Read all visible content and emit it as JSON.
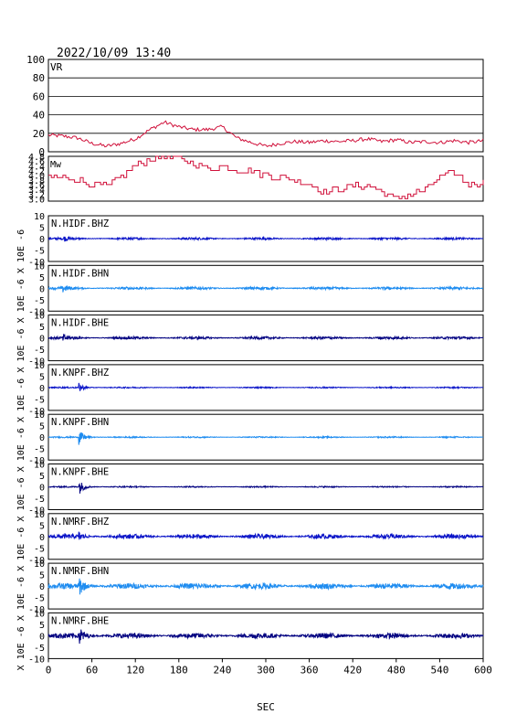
{
  "header": {
    "datetime": "2022/10/09  13:40"
  },
  "x_axis": {
    "label": "SEC",
    "ticks": [
      0,
      60,
      120,
      180,
      240,
      300,
      360,
      420,
      480,
      540,
      600
    ],
    "range": [
      0,
      600
    ]
  },
  "colors": {
    "frame": "#000000",
    "vr": "#d0103a",
    "mw": "#d0103a",
    "bhz": "#0a14c8",
    "bhn": "#1e8cf0",
    "bhe": "#000080"
  },
  "chart_data": [
    {
      "type": "line",
      "panel": "vr",
      "title": "VR",
      "ylim": [
        0,
        100
      ],
      "yticks": [
        0,
        20,
        40,
        60,
        80,
        100
      ],
      "grid": true,
      "x": [
        0,
        20,
        40,
        60,
        80,
        100,
        120,
        140,
        160,
        180,
        200,
        220,
        240,
        260,
        280,
        300,
        320,
        340,
        360,
        380,
        400,
        420,
        440,
        460,
        480,
        500,
        520,
        540,
        560,
        580,
        600
      ],
      "values": [
        18,
        17,
        15,
        9,
        6,
        9,
        14,
        24,
        32,
        27,
        24,
        24,
        27,
        15,
        10,
        6,
        9,
        11,
        10,
        12,
        11,
        12,
        14,
        11,
        13,
        10,
        11,
        10,
        12,
        10,
        12
      ]
    },
    {
      "type": "line",
      "panel": "mw",
      "title": "Mw",
      "ylim": [
        2.9,
        4.8
      ],
      "yticks": [
        "3.0",
        "3.2",
        "3.4",
        "3.6",
        "3.8",
        "4.0",
        "4.2",
        "4.4",
        "4.6",
        "4.8"
      ],
      "grid": false,
      "x": [
        0,
        20,
        40,
        60,
        80,
        100,
        120,
        140,
        160,
        180,
        200,
        220,
        240,
        260,
        280,
        300,
        320,
        340,
        360,
        380,
        400,
        420,
        440,
        460,
        480,
        500,
        520,
        540,
        560,
        580,
        600
      ],
      "values": [
        3.9,
        3.9,
        3.8,
        3.6,
        3.5,
        3.9,
        4.4,
        4.7,
        4.8,
        4.7,
        4.5,
        4.3,
        4.4,
        4.2,
        4.2,
        4.0,
        3.9,
        3.8,
        3.6,
        3.3,
        3.4,
        3.5,
        3.6,
        3.3,
        3.0,
        3.2,
        3.4,
        3.9,
        4.1,
        3.6,
        3.7
      ]
    },
    {
      "type": "line",
      "panel": "wave",
      "title": "N.HIDF.BHZ",
      "component": "bhz",
      "ylim": [
        -10,
        10
      ],
      "onset_s": 20,
      "peak": 1.2,
      "noise": 0.5
    },
    {
      "type": "line",
      "panel": "wave",
      "title": "N.HIDF.BHN",
      "component": "bhn",
      "ylim": [
        -10,
        10
      ],
      "onset_s": 20,
      "peak": 1.6,
      "noise": 0.6
    },
    {
      "type": "line",
      "panel": "wave",
      "title": "N.HIDF.BHE",
      "component": "bhe",
      "ylim": [
        -10,
        10
      ],
      "onset_s": 20,
      "peak": 1.6,
      "noise": 0.6
    },
    {
      "type": "line",
      "panel": "wave",
      "title": "N.KNPF.BHZ",
      "component": "bhz",
      "ylim": [
        -10,
        10
      ],
      "onset_s": 42,
      "peak": 2.0,
      "noise": 0.3
    },
    {
      "type": "line",
      "panel": "wave",
      "title": "N.KNPF.BHN",
      "component": "bhn",
      "ylim": [
        -10,
        10
      ],
      "onset_s": 42,
      "peak": 3.5,
      "noise": 0.3
    },
    {
      "type": "line",
      "panel": "wave",
      "title": "N.KNPF.BHE",
      "component": "bhe",
      "ylim": [
        -10,
        10
      ],
      "onset_s": 42,
      "peak": 3.5,
      "noise": 0.3
    },
    {
      "type": "line",
      "panel": "wave",
      "title": "N.NMRF.BHZ",
      "component": "bhz",
      "ylim": [
        -10,
        10
      ],
      "onset_s": 42,
      "peak": 1.8,
      "noise": 1.0
    },
    {
      "type": "line",
      "panel": "wave",
      "title": "N.NMRF.BHN",
      "component": "bhn",
      "ylim": [
        -10,
        10
      ],
      "onset_s": 42,
      "peak": 4.5,
      "noise": 1.3
    },
    {
      "type": "line",
      "panel": "wave",
      "title": "N.NMRF.BHE",
      "component": "bhe",
      "ylim": [
        -10,
        10
      ],
      "onset_s": 42,
      "peak": 4.5,
      "noise": 1.2
    }
  ],
  "wave_axis": {
    "yticks": [
      "10",
      "5",
      "0",
      "-5",
      "-10"
    ],
    "ylabel": "X 10E -6"
  }
}
